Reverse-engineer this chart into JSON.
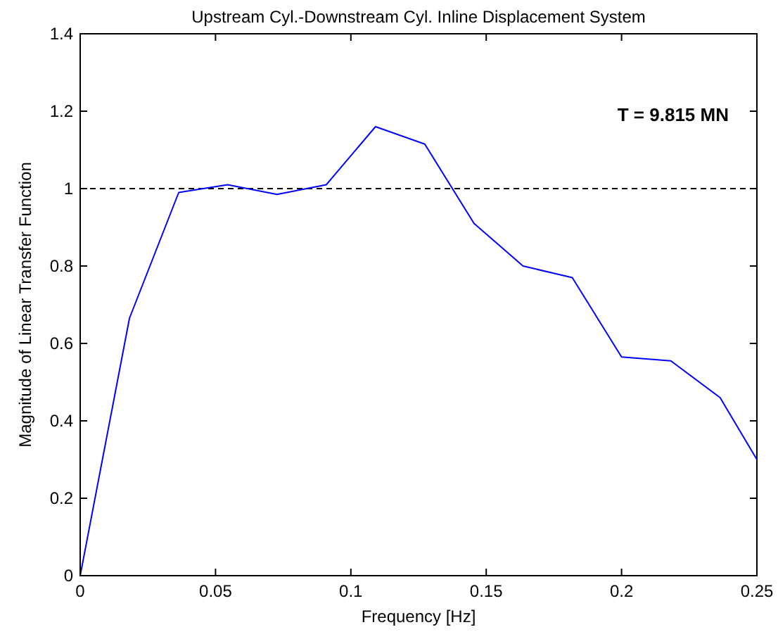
{
  "chart_data": {
    "type": "line",
    "title": "Upstream Cyl.-Downstream Cyl. Inline Displacement System",
    "xlabel": "Frequency [Hz]",
    "ylabel": "Magnitude of Linear Transfer Function",
    "x": [
      0,
      0.0182,
      0.0364,
      0.0545,
      0.0727,
      0.0909,
      0.1091,
      0.1273,
      0.1455,
      0.1636,
      0.1818,
      0.2,
      0.2182,
      0.2364,
      0.25
    ],
    "series": [
      {
        "color": "#0000ff",
        "values": [
          0,
          0.665,
          0.99,
          1.01,
          0.985,
          1.01,
          1.16,
          1.115,
          0.91,
          0.8,
          0.77,
          0.565,
          0.555,
          0.46,
          0.3
        ]
      }
    ],
    "xlim": [
      0,
      0.25
    ],
    "xticks": [
      0,
      0.05,
      0.1,
      0.15,
      0.2,
      0.25
    ],
    "ylim": [
      0,
      1.4
    ],
    "yticks": [
      0,
      0.2,
      0.4,
      0.6,
      0.8,
      1,
      1.2,
      1.4
    ],
    "ref_lines": [
      {
        "axis": "y",
        "value": 1,
        "color": "#000000",
        "line_style": "dashed"
      }
    ],
    "annotations": [
      "T = 9.815 MN"
    ],
    "grid": false,
    "marker": "none",
    "line_style": "solid"
  }
}
